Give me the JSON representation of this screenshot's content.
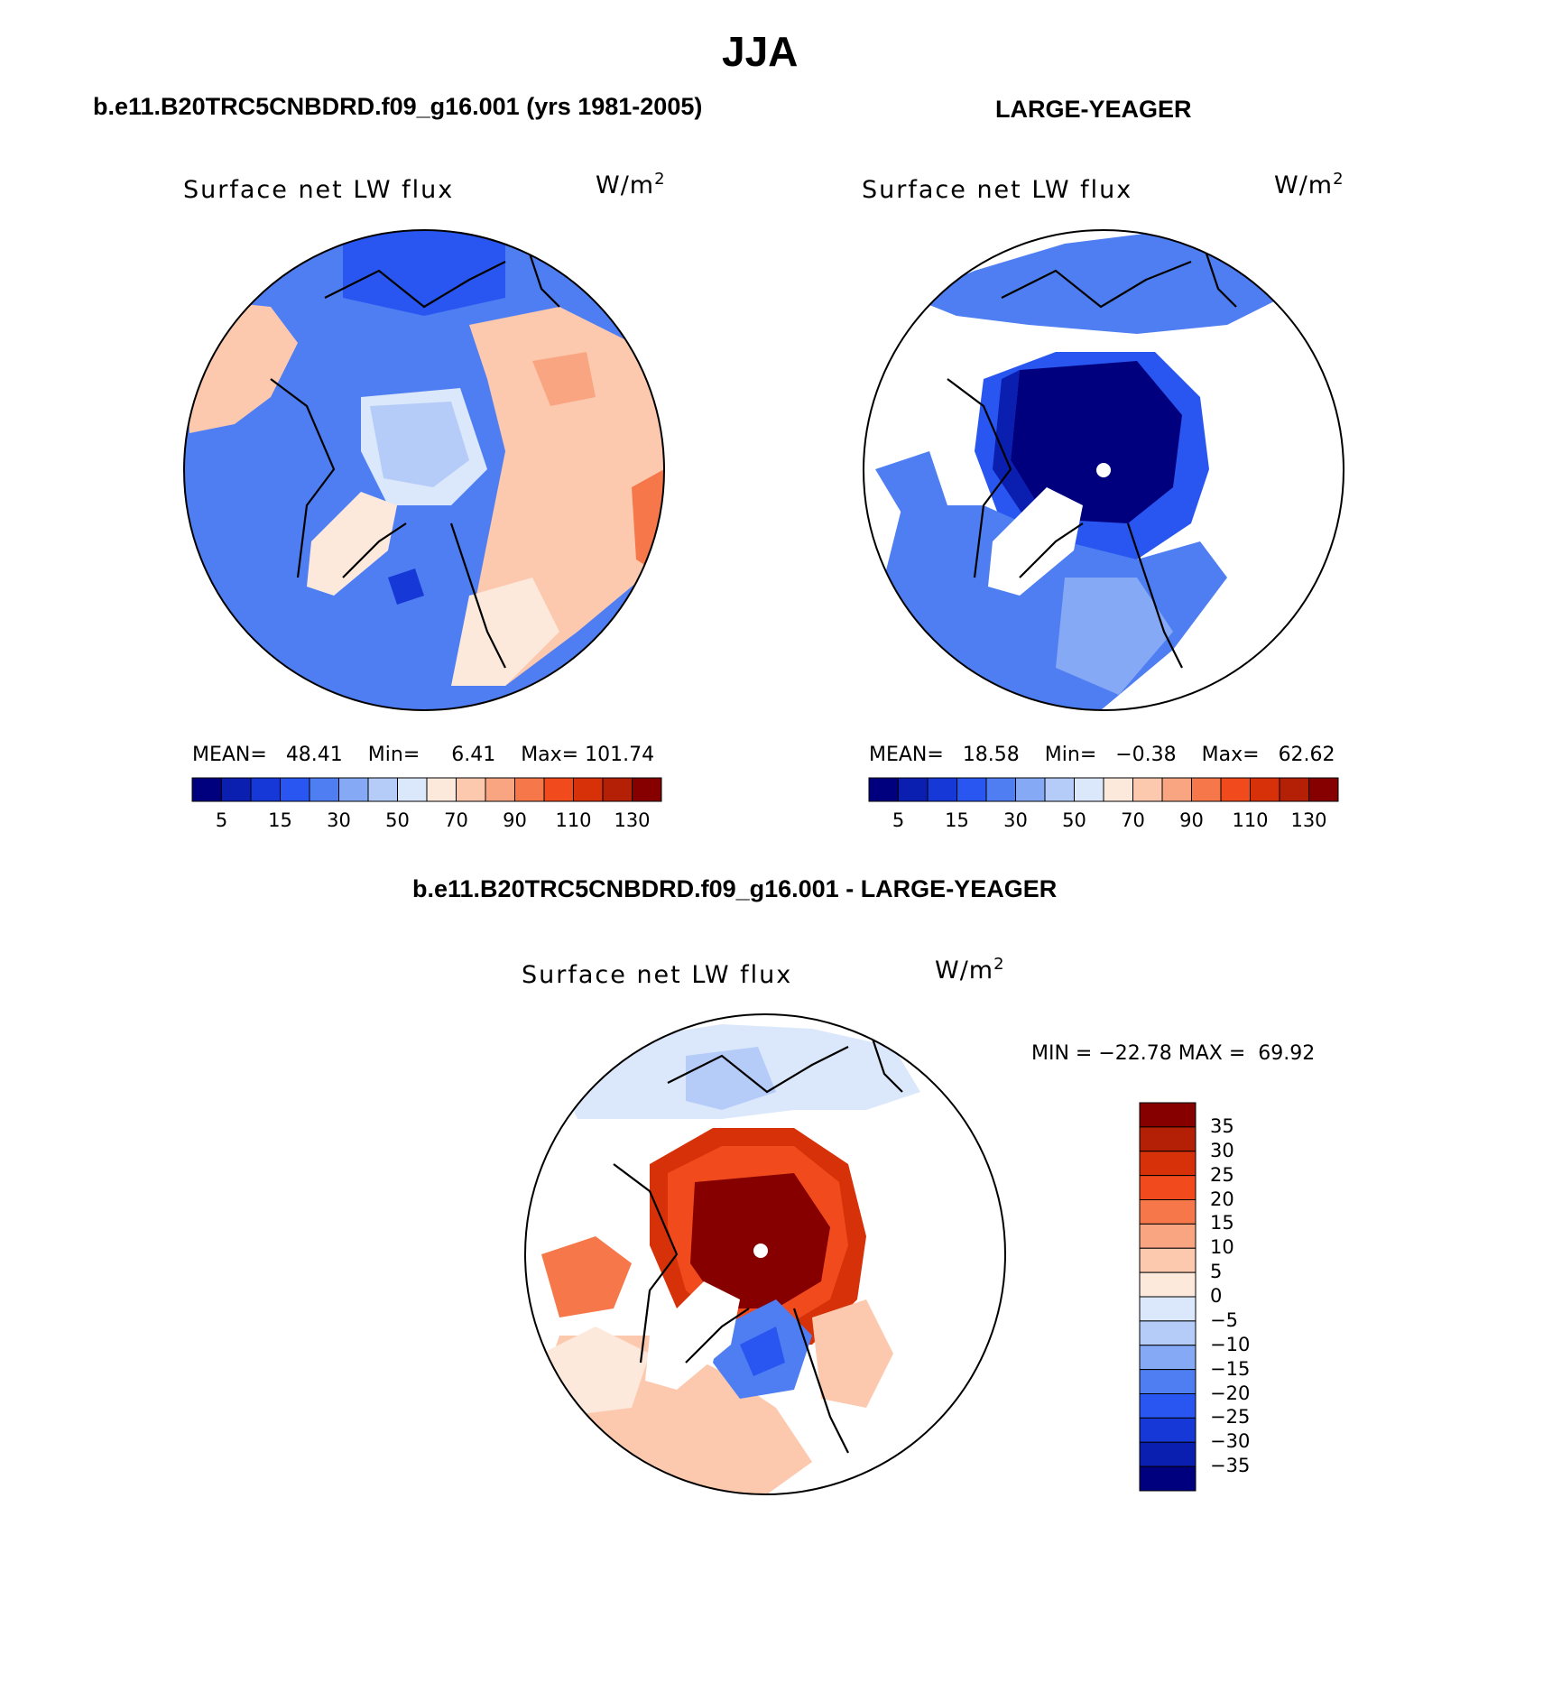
{
  "figure": {
    "season": "JJA"
  },
  "panels": [
    {
      "id": "model",
      "title": "b.e11.B20TRC5CNBDRD.f09_g16.001 (yrs 1981-2005)",
      "variable": "Surface net LW flux",
      "units_base": "W/m",
      "units_exp": "2",
      "stats": {
        "mean_label": "MEAN=",
        "mean": "48.41",
        "min_label": "Min=",
        "min": "6.41",
        "max_label": "Max=",
        "max": "101.74"
      }
    },
    {
      "id": "obs",
      "title": "LARGE-YEAGER",
      "variable": "Surface net LW flux",
      "units_base": "W/m",
      "units_exp": "2",
      "stats": {
        "mean_label": "MEAN=",
        "mean": "18.58",
        "min_label": "Min=",
        "min": "−0.38",
        "max_label": "Max=",
        "max": "62.62"
      }
    },
    {
      "id": "diff",
      "title": "b.e11.B20TRC5CNBDRD.f09_g16.001 - LARGE-YEAGER",
      "variable": "Surface net LW flux",
      "units_base": "W/m",
      "units_exp": "2",
      "stats": {
        "text": "MIN = −22.78 MAX =  69.92"
      }
    }
  ],
  "colorbars": {
    "absolute": {
      "colors": [
        "#00007f",
        "#0a1fb0",
        "#1538d6",
        "#2956f0",
        "#4f7ef2",
        "#86a9f5",
        "#b5ccf9",
        "#dbe8fb",
        "#fde9dc",
        "#fcc9ae",
        "#f9a582",
        "#f6784a",
        "#f14a1d",
        "#d7310a",
        "#b32006",
        "#860000"
      ],
      "tick_labels": [
        "5",
        "15",
        "30",
        "50",
        "70",
        "90",
        "110",
        "130"
      ]
    },
    "difference": {
      "colors": [
        "#860000",
        "#b32006",
        "#d7310a",
        "#f14a1d",
        "#f6784a",
        "#f9a582",
        "#fcc9ae",
        "#fde9dc",
        "#dbe8fb",
        "#b5ccf9",
        "#86a9f5",
        "#4f7ef2",
        "#2956f0",
        "#1538d6",
        "#0a1fb0",
        "#00007f"
      ],
      "tick_labels": [
        "35",
        "30",
        "25",
        "20",
        "15",
        "10",
        "5",
        "0",
        "−5",
        "−10",
        "−15",
        "−20",
        "−25",
        "−30",
        "−35"
      ]
    }
  },
  "colors": {
    "land": "#ffffff",
    "coast": "#000000"
  }
}
